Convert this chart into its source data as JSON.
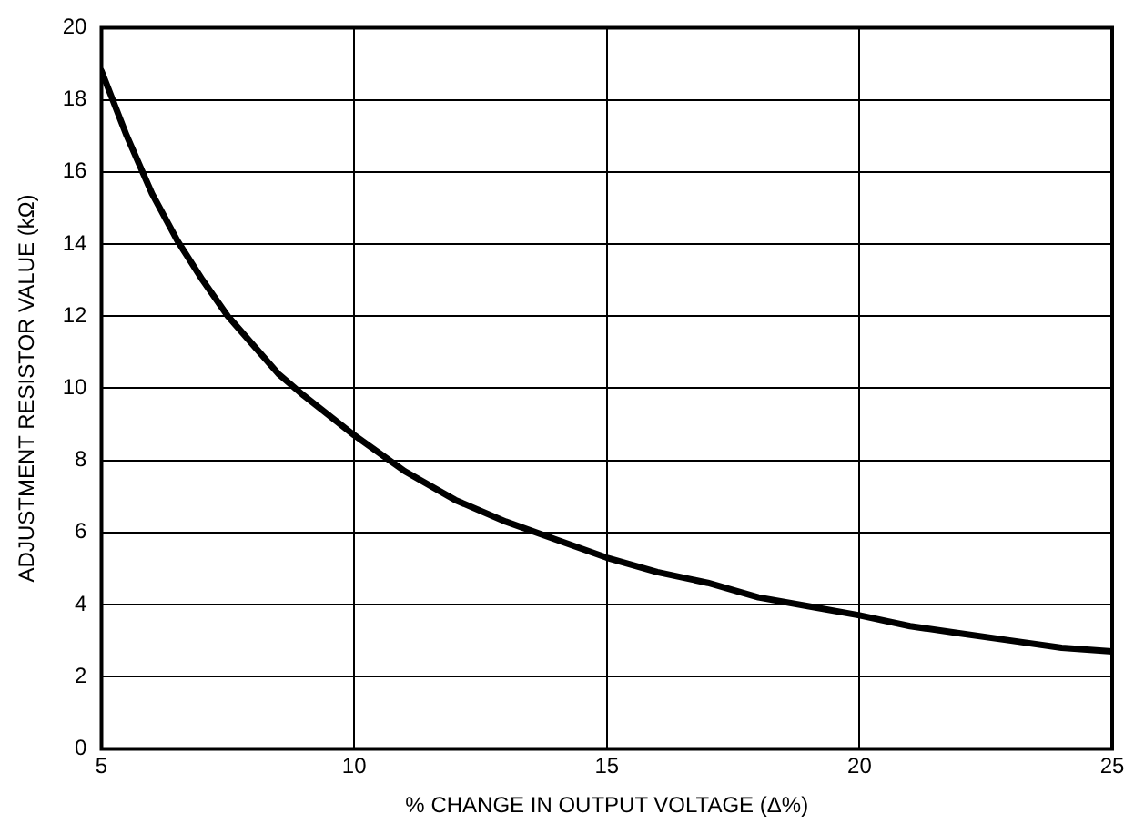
{
  "chart_data": {
    "type": "line",
    "xlabel": "% CHANGE IN OUTPUT VOLTAGE (Δ%)",
    "ylabel": "ADJUSTMENT RESISTOR VALUE (kΩ)",
    "x": [
      5,
      5.5,
      6,
      6.5,
      7,
      7.5,
      8,
      8.5,
      9,
      10,
      11,
      12,
      13,
      14,
      15,
      16,
      17,
      18,
      19,
      20,
      21,
      22,
      23,
      24,
      25
    ],
    "series": [
      {
        "color": "#000000",
        "values": [
          18.8,
          17.0,
          15.4,
          14.1,
          13.0,
          12.0,
          11.2,
          10.4,
          9.8,
          8.7,
          7.7,
          6.9,
          6.3,
          5.8,
          5.3,
          4.9,
          4.6,
          4.2,
          3.95,
          3.7,
          3.4,
          3.2,
          3.0,
          2.8,
          2.7
        ]
      }
    ],
    "xlim": [
      5,
      25
    ],
    "xticks": [
      5,
      10,
      15,
      20,
      25
    ],
    "ylim": [
      0,
      20
    ],
    "yticks": [
      0,
      2,
      4,
      6,
      8,
      10,
      12,
      14,
      16,
      18,
      20
    ],
    "grid": true,
    "legend": false,
    "marker": "none",
    "line_style": "solid"
  }
}
